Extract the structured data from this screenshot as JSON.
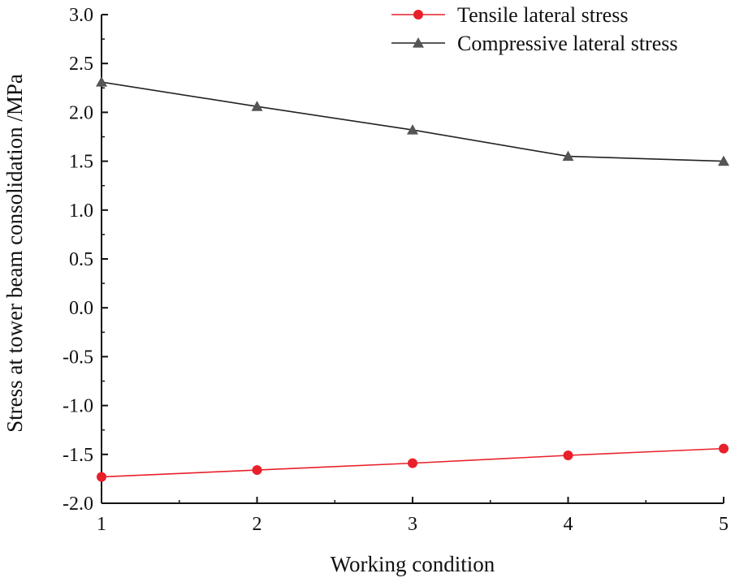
{
  "chart_data": {
    "type": "line",
    "title": "",
    "xlabel": "Working condition",
    "ylabel": "Stress at tower beam consolidation /MPa",
    "x": [
      1,
      2,
      3,
      4,
      5
    ],
    "xlim": [
      1,
      5
    ],
    "ylim": [
      -2.0,
      3.0
    ],
    "xticks": [
      1,
      2,
      3,
      4,
      5
    ],
    "xtick_labels": [
      "1",
      "2",
      "3",
      "4",
      "5"
    ],
    "yticks": [
      3.0,
      2.5,
      2.0,
      1.5,
      1.0,
      0.5,
      0.0,
      -0.5,
      -1.0,
      -1.5,
      -2.0
    ],
    "ytick_labels": [
      "3.0",
      "2.5",
      "2.0",
      "1.5",
      "1.0",
      "0.5",
      "0.0",
      "-0.5",
      "-1.0",
      "-1.5",
      "-2.0"
    ],
    "grid": false,
    "legend_position": "top-right",
    "series": [
      {
        "name": "Tensile lateral stress",
        "values": [
          -1.73,
          -1.66,
          -1.59,
          -1.51,
          -1.44
        ],
        "color": "#e8202a",
        "marker": "circle"
      },
      {
        "name": "Compressive lateral stress",
        "values": [
          2.31,
          2.06,
          1.82,
          1.55,
          1.5
        ],
        "color": "#222222",
        "marker_color": "#555555",
        "marker": "triangle"
      }
    ]
  }
}
